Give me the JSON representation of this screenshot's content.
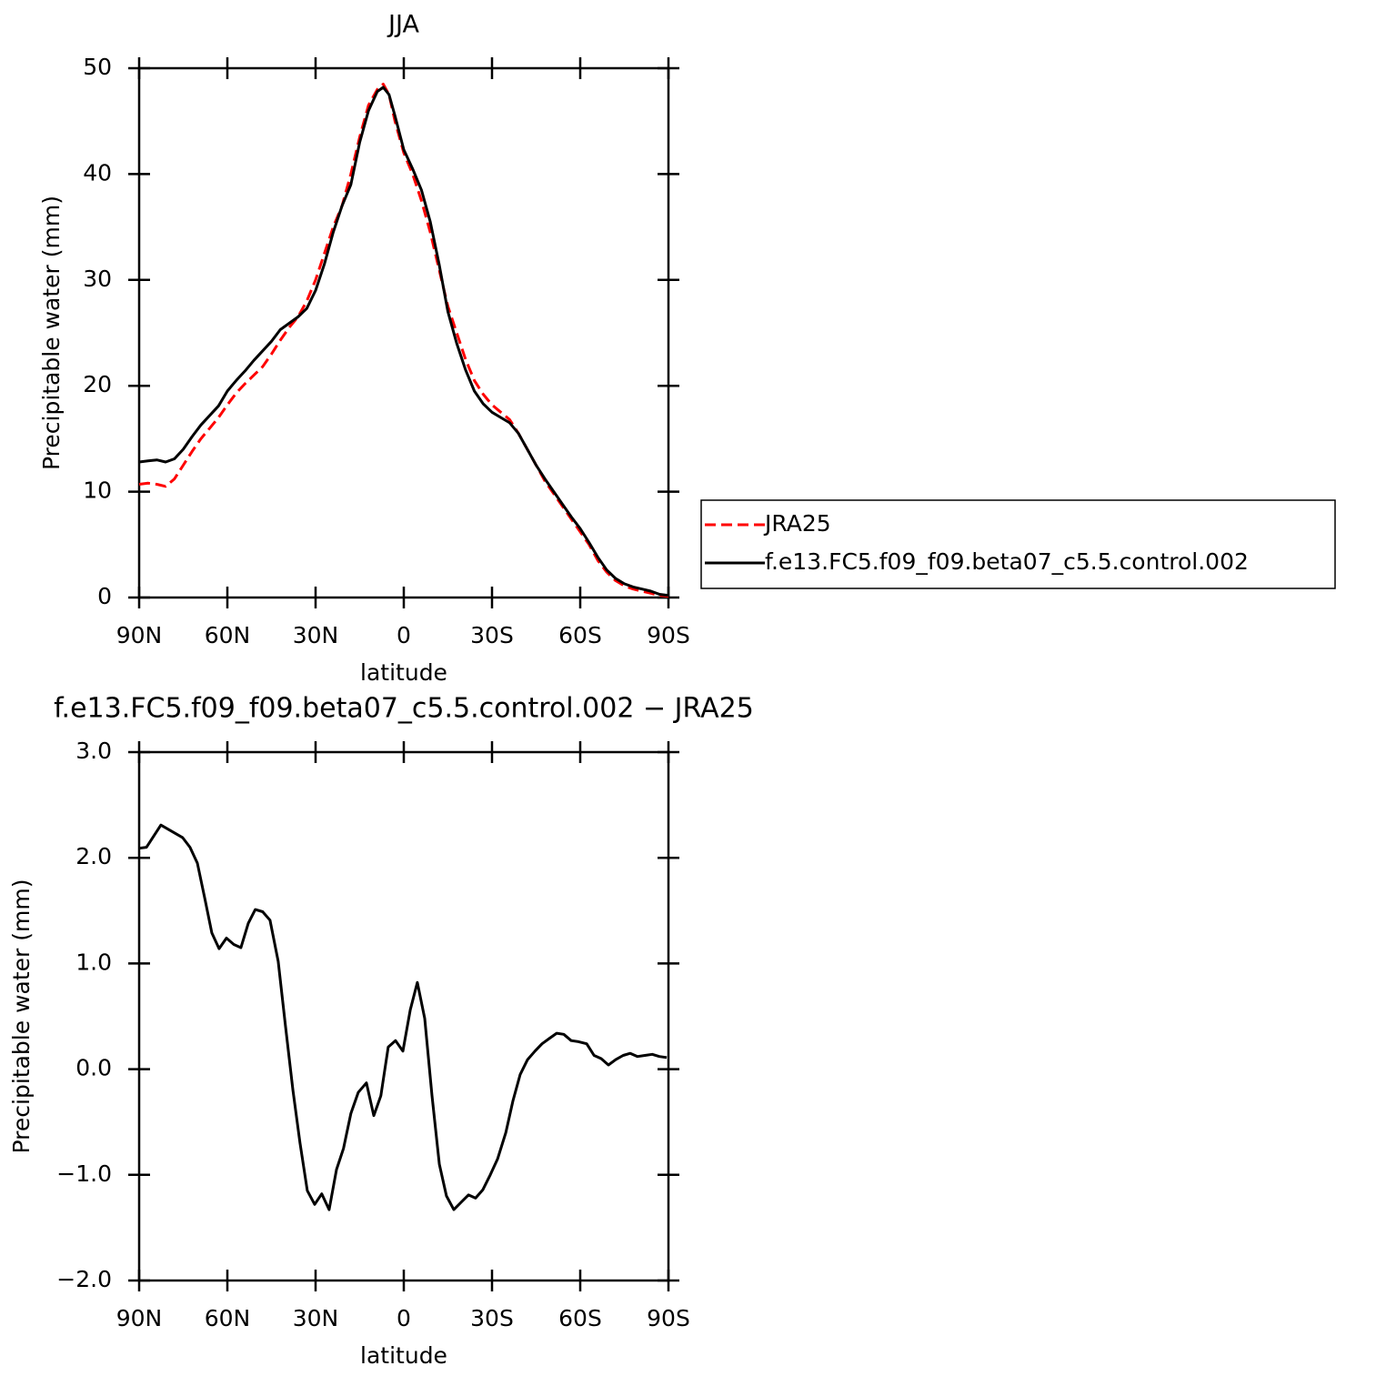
{
  "chart_data": [
    {
      "type": "line",
      "title": "JJA",
      "xlabel": "latitude",
      "ylabel": "Precipitable water (mm)",
      "x": [
        90,
        87,
        84,
        81,
        78,
        75,
        72,
        69,
        66,
        63,
        60,
        57,
        54,
        51,
        48,
        45,
        42,
        39,
        36,
        33,
        30,
        27,
        24,
        21,
        18,
        15,
        12,
        9,
        7,
        5,
        3,
        0,
        -3,
        -6,
        -9,
        -12,
        -15,
        -18,
        -21,
        -24,
        -27,
        -30,
        -33,
        -36,
        -39,
        -42,
        -45,
        -48,
        -51,
        -54,
        -57,
        -60,
        -63,
        -66,
        -69,
        -72,
        -75,
        -78,
        -81,
        -84,
        -87,
        -90
      ],
      "series": [
        {
          "name": "JRA25",
          "color": "#ff0000",
          "linestyle": "dashed",
          "values": [
            10.7,
            10.8,
            10.7,
            10.5,
            11.2,
            12.5,
            13.8,
            15.0,
            16.0,
            17.0,
            18.2,
            19.3,
            20.2,
            21.0,
            21.8,
            23.0,
            24.3,
            25.5,
            26.5,
            28.0,
            30.0,
            32.5,
            35.0,
            37.0,
            40.0,
            43.5,
            46.5,
            48.0,
            48.5,
            47.5,
            45.0,
            42.0,
            40.0,
            37.5,
            34.5,
            31.0,
            27.5,
            25.0,
            22.5,
            20.5,
            19.2,
            18.2,
            17.5,
            16.8,
            15.5,
            14.0,
            12.5,
            11.0,
            9.8,
            8.6,
            7.4,
            6.2,
            5.0,
            3.5,
            2.4,
            1.6,
            1.1,
            0.8,
            0.6,
            0.4,
            0.2,
            0.1
          ]
        },
        {
          "name": "f.e13.FC5.f09_f09.beta07_c5.5.control.002",
          "color": "#000000",
          "linestyle": "solid",
          "values": [
            12.8,
            12.9,
            13.0,
            12.8,
            13.1,
            14.0,
            15.2,
            16.3,
            17.2,
            18.1,
            19.5,
            20.5,
            21.4,
            22.4,
            23.3,
            24.2,
            25.3,
            25.9,
            26.5,
            27.3,
            29.0,
            31.5,
            34.5,
            37.0,
            39.0,
            43.0,
            46.0,
            47.8,
            48.2,
            47.5,
            45.5,
            42.3,
            40.5,
            38.5,
            35.5,
            31.5,
            27.0,
            24.0,
            21.5,
            19.5,
            18.3,
            17.5,
            17.0,
            16.5,
            15.5,
            14.0,
            12.5,
            11.2,
            10.0,
            8.8,
            7.6,
            6.5,
            5.2,
            3.8,
            2.6,
            1.8,
            1.3,
            1.0,
            0.8,
            0.6,
            0.3,
            0.2
          ]
        }
      ],
      "xlim": [
        90,
        -90
      ],
      "xticks": [
        {
          "value": 90,
          "label": "90N"
        },
        {
          "value": 60,
          "label": "60N"
        },
        {
          "value": 30,
          "label": "30N"
        },
        0,
        {
          "value": -30,
          "label": "30S"
        },
        {
          "value": -60,
          "label": "60S"
        },
        {
          "value": -90,
          "label": "90S"
        }
      ],
      "ylim": [
        0,
        50
      ],
      "yticks": [
        0,
        10,
        20,
        30,
        40,
        50
      ],
      "legend": "right"
    },
    {
      "type": "line",
      "title": "f.e13.FC5.f09_f09.beta07_c5.5.control.002 − JRA25",
      "xlabel": "latitude",
      "ylabel": "Precipitable water (mm)",
      "x": [
        90,
        87.5,
        82.6,
        75.2,
        72.7,
        70.2,
        67.7,
        65.3,
        62.8,
        60.3,
        57.8,
        55.4,
        52.9,
        50.5,
        48,
        45.5,
        42.7,
        40.2,
        37.7,
        35.3,
        32.8,
        30.3,
        27.9,
        25.4,
        22.9,
        20.5,
        18,
        15.5,
        12.7,
        10.2,
        7.8,
        5.3,
        2.8,
        0.3,
        -2.2,
        -4.6,
        -7.1,
        -9.6,
        -12.1,
        -14.5,
        -17,
        -19.5,
        -22,
        -24.4,
        -26.9,
        -29.4,
        -31.9,
        -34.7,
        -37.1,
        -39.6,
        -42.1,
        -44.6,
        -47,
        -49.5,
        -52,
        -54.4,
        -56.9,
        -59.4,
        -62.2,
        -64.7,
        -67.1,
        -69.6,
        -72.1,
        -74.6,
        -77,
        -79.5,
        -82,
        -84.5,
        -86.9,
        -89.4
      ],
      "values": [
        2.09,
        2.1,
        2.31,
        2.19,
        2.1,
        1.95,
        1.62,
        1.29,
        1.14,
        1.24,
        1.18,
        1.15,
        1.38,
        1.51,
        1.49,
        1.41,
        1.02,
        0.4,
        -0.2,
        -0.7,
        -1.15,
        -1.28,
        -1.18,
        -1.33,
        -0.95,
        -0.75,
        -0.42,
        -0.22,
        -0.13,
        -0.44,
        -0.25,
        0.21,
        0.27,
        0.17,
        0.56,
        0.82,
        0.48,
        -0.25,
        -0.9,
        -1.2,
        -1.33,
        -1.26,
        -1.19,
        -1.22,
        -1.14,
        -1.0,
        -0.85,
        -0.6,
        -0.3,
        -0.05,
        0.09,
        0.17,
        0.24,
        0.29,
        0.34,
        0.33,
        0.27,
        0.26,
        0.24,
        0.13,
        0.1,
        0.04,
        0.09,
        0.13,
        0.15,
        0.12,
        0.13,
        0.14,
        0.12,
        0.11
      ],
      "color": "#000000",
      "linestyle": "solid",
      "xlim": [
        90,
        -90
      ],
      "xticks": [
        {
          "value": 90,
          "label": "90N"
        },
        {
          "value": 60,
          "label": "60N"
        },
        {
          "value": 30,
          "label": "30N"
        },
        0,
        {
          "value": -30,
          "label": "30S"
        },
        {
          "value": -60,
          "label": "60S"
        },
        {
          "value": -90,
          "label": "90S"
        }
      ],
      "ylim": [
        -2,
        3
      ],
      "yticks": [
        {
          "value": -2,
          "label": "−2.0"
        },
        {
          "value": -1,
          "label": "−1.0"
        },
        {
          "value": 0,
          "label": "0.0"
        },
        {
          "value": 1,
          "label": "1.0"
        },
        {
          "value": 2,
          "label": "2.0"
        },
        {
          "value": 3,
          "label": "3.0"
        }
      ]
    }
  ]
}
